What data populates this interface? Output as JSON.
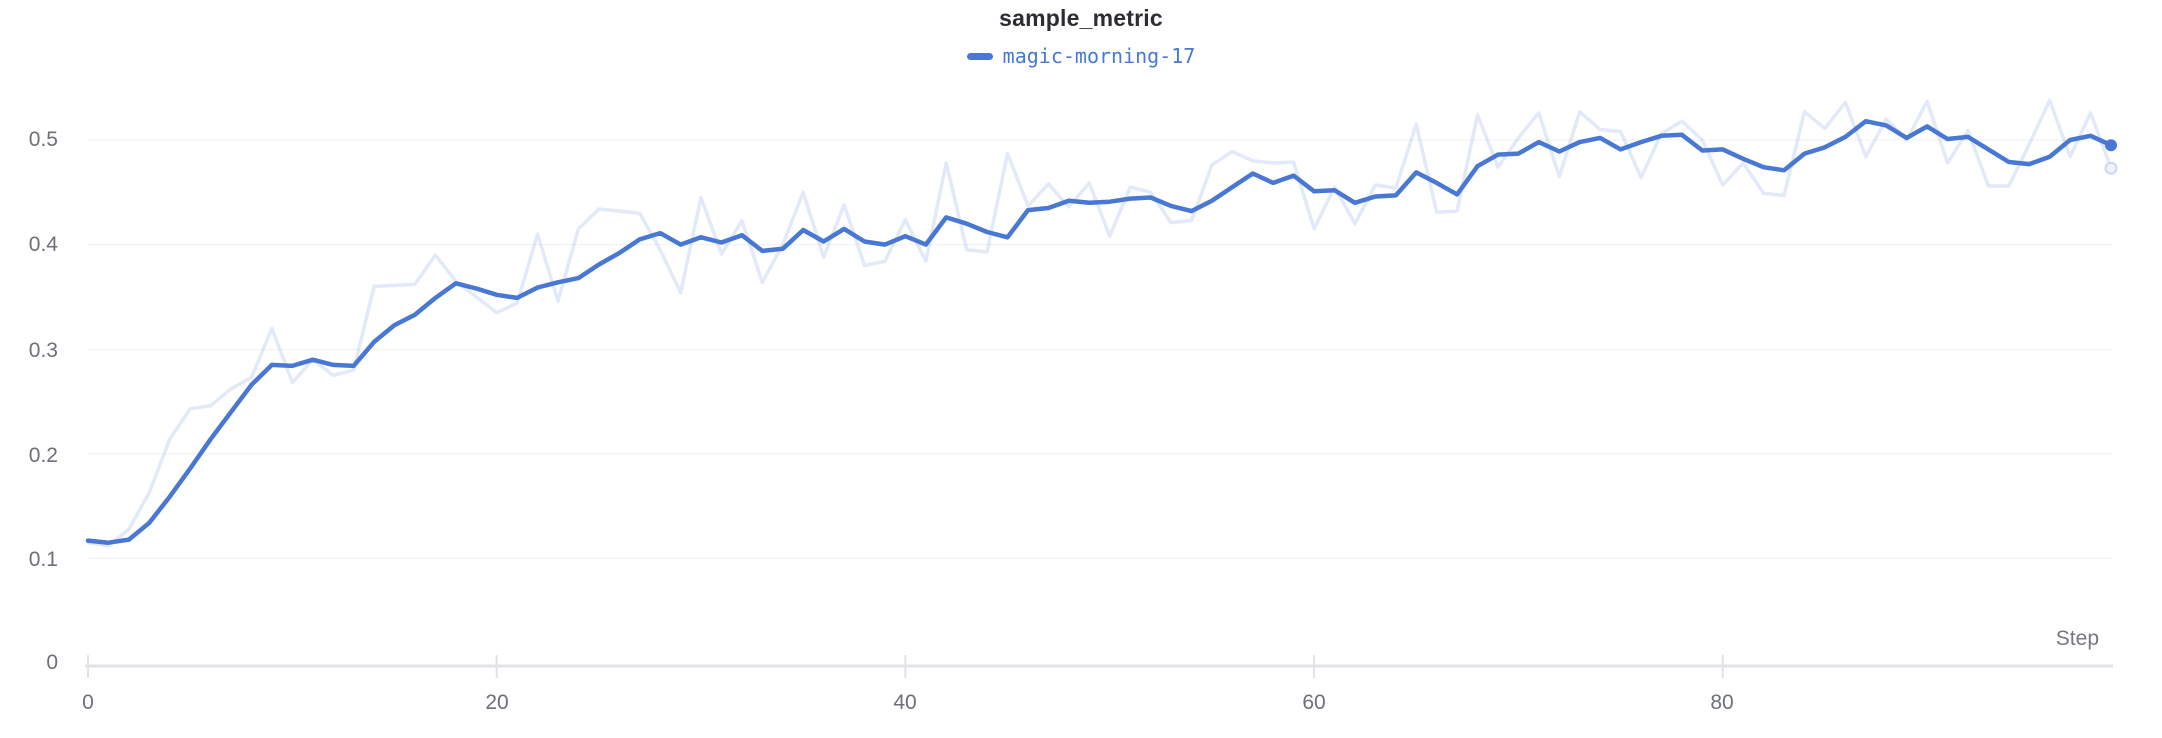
{
  "panel": {
    "title": "sample_metric",
    "legend": {
      "run_name": "magic-morning-17",
      "swatch_color": "#4878d4"
    }
  },
  "axes": {
    "x_label": "Step",
    "x_ticks": [
      "0",
      "20",
      "40",
      "60",
      "80"
    ],
    "y_ticks": [
      "0",
      "0.1",
      "0.2",
      "0.3",
      "0.4",
      "0.5"
    ]
  },
  "chart_data": {
    "type": "line",
    "title": "sample_metric",
    "xlabel": "Step",
    "ylabel": "",
    "xlim": [
      0,
      99
    ],
    "ylim": [
      0,
      0.55
    ],
    "x_ticks": [
      0,
      20,
      40,
      60,
      80
    ],
    "y_ticks": [
      0,
      0.1,
      0.2,
      0.3,
      0.4,
      0.5
    ],
    "grid": "horizontal",
    "legend_position": "top-center",
    "grid_color": "#f1f1f4",
    "axis_color": "#e2e3e7",
    "x_start": 0,
    "x_increment": 1,
    "series": [
      {
        "name": "magic-morning-17 (original)",
        "role": "original",
        "color": "#4878d4",
        "opacity": 0.16,
        "values": [
          0.115,
          0.112,
          0.128,
          0.163,
          0.214,
          0.243,
          0.246,
          0.262,
          0.273,
          0.32,
          0.268,
          0.29,
          0.275,
          0.28,
          0.36,
          0.361,
          0.362,
          0.39,
          0.365,
          0.35,
          0.335,
          0.344,
          0.41,
          0.346,
          0.415,
          0.434,
          0.432,
          0.43,
          0.395,
          0.354,
          0.445,
          0.391,
          0.423,
          0.364,
          0.4,
          0.45,
          0.388,
          0.438,
          0.38,
          0.384,
          0.424,
          0.384,
          0.478,
          0.395,
          0.393,
          0.487,
          0.437,
          0.458,
          0.436,
          0.459,
          0.408,
          0.455,
          0.45,
          0.421,
          0.423,
          0.476,
          0.489,
          0.48,
          0.478,
          0.479,
          0.415,
          0.455,
          0.42,
          0.457,
          0.454,
          0.515,
          0.431,
          0.432,
          0.524,
          0.474,
          0.502,
          0.526,
          0.465,
          0.527,
          0.51,
          0.508,
          0.464,
          0.506,
          0.518,
          0.5,
          0.457,
          0.478,
          0.449,
          0.447,
          0.527,
          0.511,
          0.536,
          0.484,
          0.52,
          0.5,
          0.537,
          0.478,
          0.509,
          0.456,
          0.456,
          0.496,
          0.538,
          0.484,
          0.526,
          0.473
        ]
      },
      {
        "name": "magic-morning-17",
        "role": "smoothed",
        "color": "#4878d4",
        "opacity": 1,
        "values": [
          0.117,
          0.115,
          0.118,
          0.134,
          0.159,
          0.186,
          0.214,
          0.24,
          0.266,
          0.285,
          0.284,
          0.29,
          0.285,
          0.284,
          0.307,
          0.323,
          0.333,
          0.349,
          0.363,
          0.358,
          0.352,
          0.349,
          0.359,
          0.364,
          0.368,
          0.381,
          0.392,
          0.405,
          0.411,
          0.4,
          0.407,
          0.402,
          0.409,
          0.394,
          0.396,
          0.414,
          0.403,
          0.415,
          0.403,
          0.4,
          0.408,
          0.4,
          0.426,
          0.42,
          0.412,
          0.407,
          0.433,
          0.435,
          0.442,
          0.44,
          0.441,
          0.444,
          0.445,
          0.437,
          0.432,
          0.442,
          0.455,
          0.468,
          0.459,
          0.466,
          0.451,
          0.452,
          0.44,
          0.446,
          0.447,
          0.469,
          0.459,
          0.448,
          0.475,
          0.486,
          0.487,
          0.498,
          0.489,
          0.498,
          0.502,
          0.491,
          0.498,
          0.504,
          0.505,
          0.49,
          0.491,
          0.482,
          0.474,
          0.471,
          0.487,
          0.493,
          0.503,
          0.518,
          0.514,
          0.502,
          0.513,
          0.501,
          0.503,
          0.491,
          0.479,
          0.477,
          0.484,
          0.5,
          0.504,
          0.495
        ]
      }
    ]
  }
}
